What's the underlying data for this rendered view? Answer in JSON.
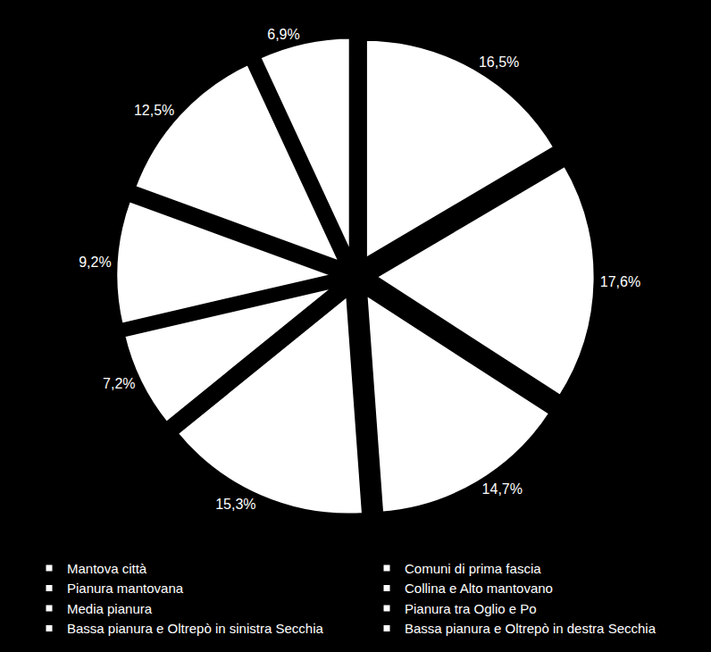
{
  "chart_data": {
    "type": "pie",
    "categories": [
      "Mantova città",
      "Comuni di prima fascia",
      "Pianura mantovana",
      "Collina e Alto mantovano",
      "Media pianura",
      "Pianura tra Oglio e Po",
      "Bassa pianura e Oltrepò in sinistra Secchia",
      "Bassa pianura e Oltrepò in destra Secchia"
    ],
    "values": [
      16.5,
      17.6,
      14.7,
      15.3,
      7.2,
      9.2,
      12.5,
      6.9
    ],
    "value_labels": [
      "16,5%",
      "17,6%",
      "14,7%",
      "15,3%",
      "7,2%",
      "9,2%",
      "12,5%",
      "6,9%"
    ],
    "colors": [
      "#ffffff",
      "#ffffff",
      "#ffffff",
      "#ffffff",
      "#ffffff",
      "#ffffff",
      "#ffffff",
      "#ffffff"
    ],
    "data_labels": true,
    "legend": "bottom"
  }
}
